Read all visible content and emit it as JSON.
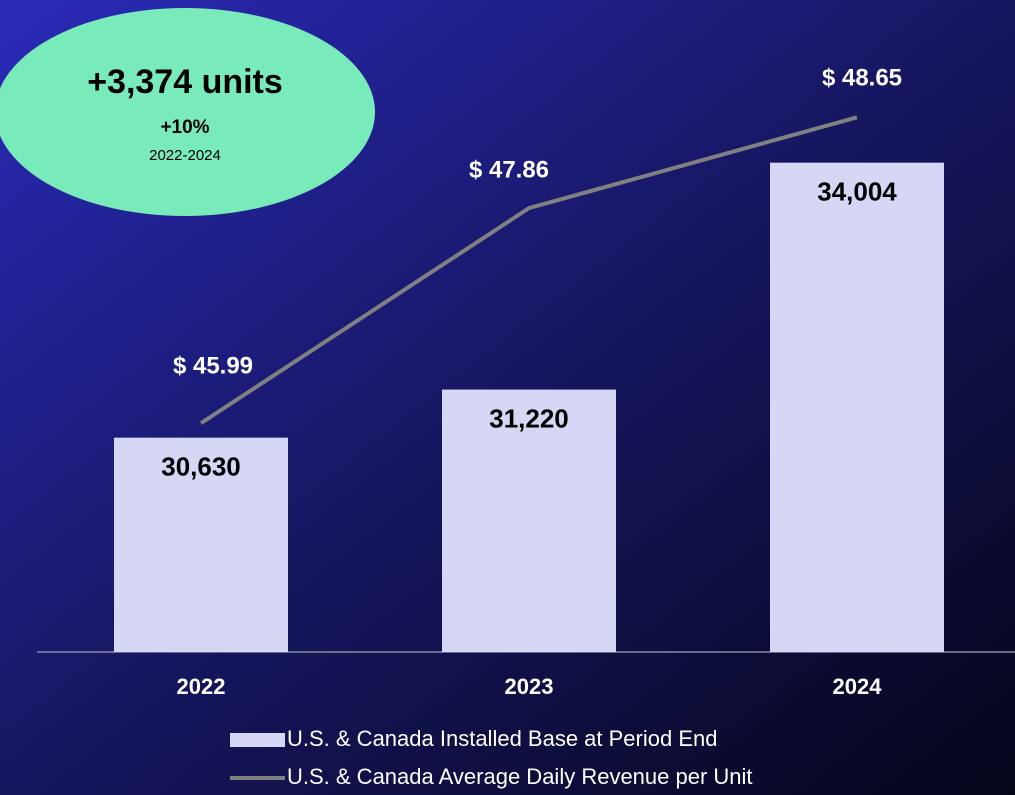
{
  "chart_data": {
    "type": "bar_line",
    "categories": [
      "2022",
      "2023",
      "2024"
    ],
    "series": [
      {
        "name": "U.S. & Canada Installed Base at Period End",
        "type": "bar",
        "color": "#d5d7f5",
        "values": [
          30630,
          31220,
          34004
        ],
        "value_labels": [
          "30,630",
          "31,220",
          "34,004"
        ]
      },
      {
        "name": "U.S. & Canada Average Daily Revenue per Unit",
        "type": "line",
        "axis": "y2",
        "color": "#808080",
        "values": [
          45.99,
          47.86,
          48.65
        ],
        "value_labels": [
          "$ 45.99",
          "$ 47.86",
          "$ 48.65"
        ]
      }
    ],
    "ylim": [
      28000,
      36000
    ],
    "y2lim": [
      44,
      49.67
    ],
    "annotation": {
      "headline": "+3,374 units",
      "change": "+10%",
      "period": "2022-2024"
    }
  }
}
